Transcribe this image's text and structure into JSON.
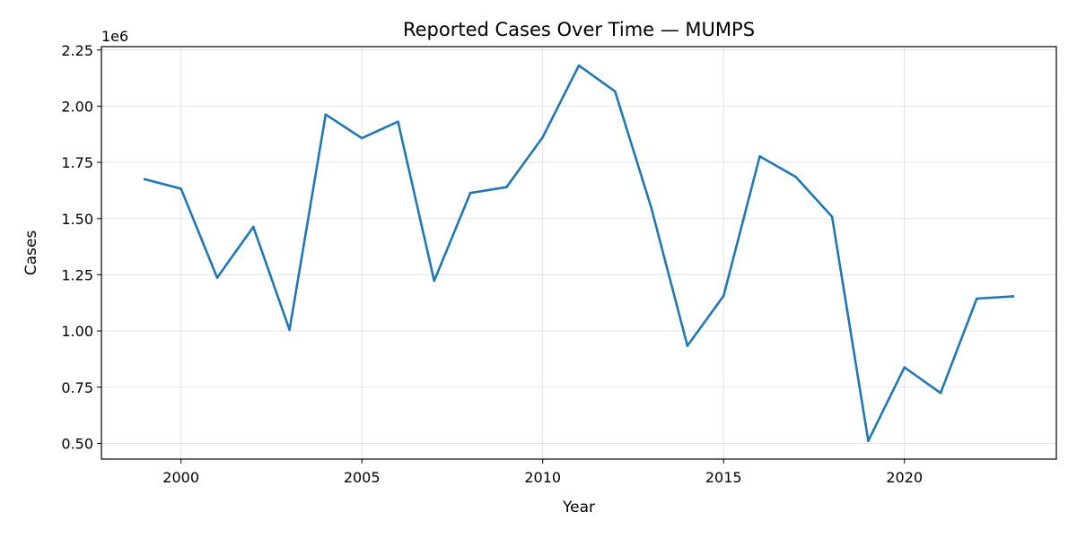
{
  "chart_data": {
    "type": "line",
    "title": "Reported Cases Over Time — MUMPS",
    "xlabel": "Year",
    "ylabel": "Cases",
    "y_offset_label": "1e6",
    "y_scale": 1000000,
    "xlim": [
      1997.8,
      2024.2
    ],
    "ylim": [
      430000,
      2265000
    ],
    "x_ticks": [
      2000,
      2005,
      2010,
      2015,
      2020
    ],
    "x_tick_labels": [
      "2000",
      "2005",
      "2010",
      "2015",
      "2020"
    ],
    "y_ticks": [
      500000,
      750000,
      1000000,
      1250000,
      1500000,
      1750000,
      2000000,
      2250000
    ],
    "y_tick_labels": [
      "0.50",
      "0.75",
      "1.00",
      "1.25",
      "1.50",
      "1.75",
      "2.00",
      "2.25"
    ],
    "grid": true,
    "series": [
      {
        "color": "#1f77b4",
        "x": [
          1999,
          2000,
          2001,
          2002,
          2003,
          2004,
          2005,
          2006,
          2007,
          2008,
          2009,
          2010,
          2011,
          2012,
          2013,
          2014,
          2015,
          2016,
          2017,
          2018,
          2019,
          2020,
          2021,
          2022,
          2023
        ],
        "y": [
          1675000,
          1633000,
          1237000,
          1463000,
          1005000,
          1963000,
          1858000,
          1931000,
          1223000,
          1614000,
          1640000,
          1862000,
          2181000,
          2066000,
          1549000,
          934000,
          1156000,
          1777000,
          1685000,
          1508000,
          511000,
          838000,
          724000,
          1144000,
          1154000
        ]
      }
    ]
  }
}
